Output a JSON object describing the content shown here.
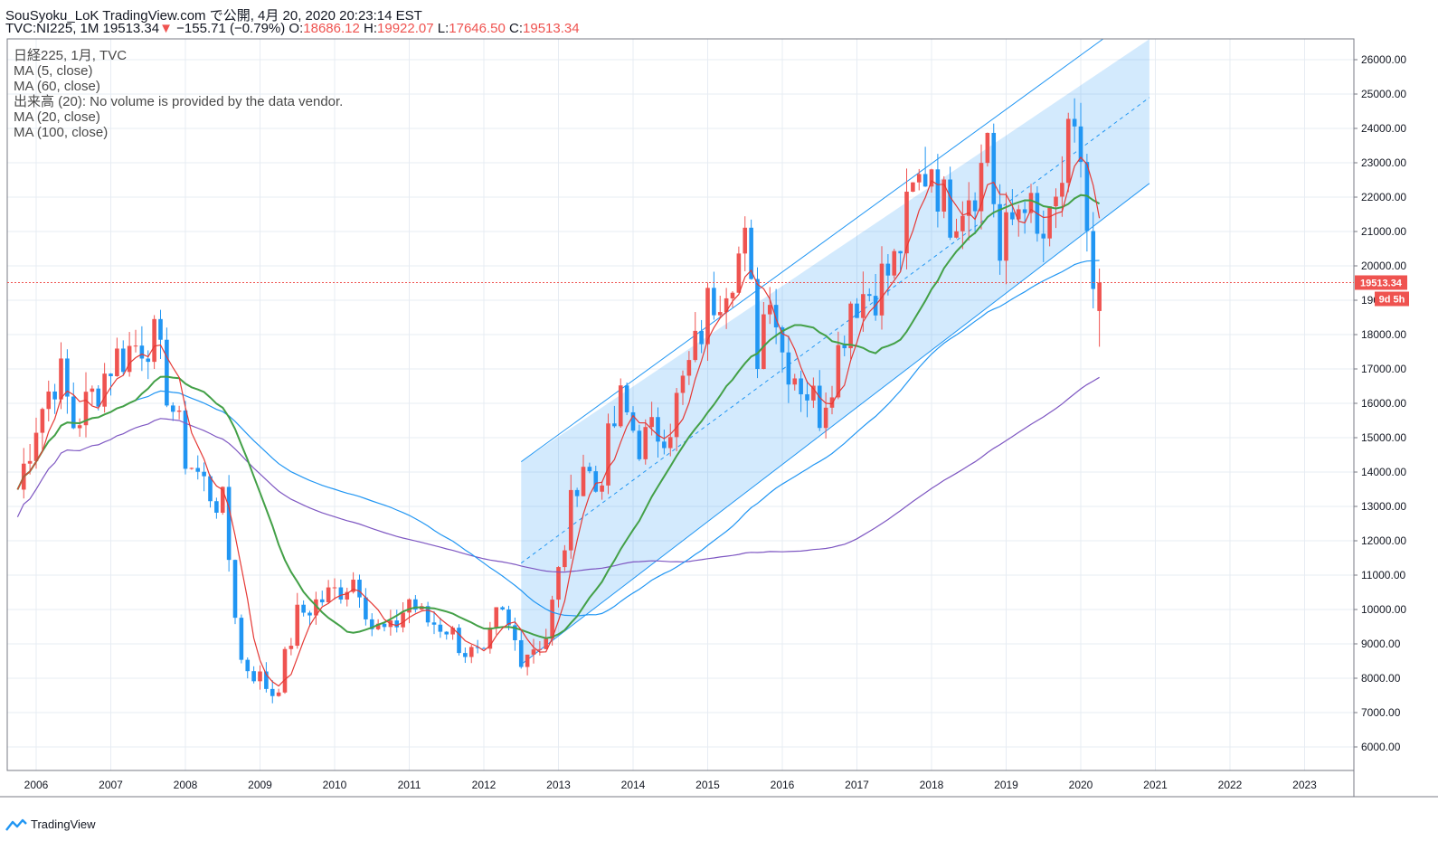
{
  "header": {
    "line1": "SouSyoku_LoK TradingView.com で公開, 4月 20, 2020 20:23:14 EST",
    "symbol": "TVC:NI225, 1M",
    "last": "19513.34",
    "arrow": "▼",
    "change": "−155.71 (−0.79%)",
    "o_label": "O:",
    "o_value": "18686.12",
    "h_label": "H:",
    "h_value": "19922.07",
    "l_label": "L:",
    "l_value": "17646.50",
    "c_label": "C:",
    "c_value": "19513.34"
  },
  "legend": {
    "title": "日経225, 1月, TVC",
    "ma5": "MA (5, close)",
    "ma60": "MA (60, close)",
    "volume": "出来高 (20): No volume is provided by the data vendor.",
    "ma20": "MA (20, close)",
    "ma100": "MA (100, close)"
  },
  "price_tag": "19513.34",
  "countdown_tag": "9d 5h",
  "brand": "TradingView",
  "colors": {
    "up": "#ef5350",
    "down": "#2196f3",
    "ma5": "#e53935",
    "ma20": "#43a047",
    "ma60": "#2196f3",
    "ma100": "#7e57c2",
    "channel": "#2196f3",
    "grid": "#e7ecf3"
  },
  "chart_data": {
    "type": "candlestick",
    "title": "日経225, 1月, TVC",
    "y_ticks": [
      6000,
      7000,
      8000,
      9000,
      10000,
      11000,
      12000,
      13000,
      14000,
      15000,
      16000,
      17000,
      18000,
      19000,
      20000,
      21000,
      22000,
      23000,
      24000,
      25000,
      26000
    ],
    "y_tick_labels": [
      "6000.00",
      "7000.00",
      "8000.00",
      "9000.00",
      "10000.00",
      "11000.00",
      "12000.00",
      "13000.00",
      "14000.00",
      "15000.00",
      "16000.00",
      "17000.00",
      "18000.00",
      "19000.00",
      "20000.00",
      "21000.00",
      "22000.00",
      "23000.00",
      "24000.00",
      "25000.00",
      "26000.00"
    ],
    "x_ticks": [
      "2006",
      "2007",
      "2008",
      "2009",
      "2010",
      "2011",
      "2012",
      "2013",
      "2014",
      "2015",
      "2016",
      "2017",
      "2018",
      "2019",
      "2020",
      "2021",
      "2022",
      "2023"
    ],
    "last_price": 19513.34,
    "ohlc_anchor_closes": [
      [
        2005.75,
        13500
      ],
      [
        2006.0,
        15500
      ],
      [
        2006.3,
        17000
      ],
      [
        2006.5,
        15400
      ],
      [
        2006.75,
        16200
      ],
      [
        2007.0,
        17200
      ],
      [
        2007.4,
        17800
      ],
      [
        2007.55,
        18000
      ],
      [
        2007.75,
        16500
      ],
      [
        2008.0,
        14500
      ],
      [
        2008.3,
        13500
      ],
      [
        2008.5,
        13000
      ],
      [
        2008.75,
        8500
      ],
      [
        2009.0,
        8000
      ],
      [
        2009.2,
        7500
      ],
      [
        2009.5,
        9800
      ],
      [
        2009.75,
        10200
      ],
      [
        2010.0,
        10500
      ],
      [
        2010.3,
        11000
      ],
      [
        2010.5,
        9500
      ],
      [
        2010.75,
        9300
      ],
      [
        2011.0,
        10300
      ],
      [
        2011.2,
        9700
      ],
      [
        2011.5,
        9500
      ],
      [
        2011.75,
        8800
      ],
      [
        2012.0,
        8500
      ],
      [
        2012.2,
        10000
      ],
      [
        2012.5,
        8700
      ],
      [
        2012.83,
        9200
      ],
      [
        2013.0,
        11000
      ],
      [
        2013.3,
        14500
      ],
      [
        2013.5,
        13500
      ],
      [
        2013.83,
        16000
      ],
      [
        2014.1,
        14800
      ],
      [
        2014.5,
        15500
      ],
      [
        2014.83,
        17500
      ],
      [
        2015.0,
        18800
      ],
      [
        2015.3,
        20000
      ],
      [
        2015.5,
        20500
      ],
      [
        2015.67,
        17500
      ],
      [
        2015.83,
        19700
      ],
      [
        2016.0,
        17500
      ],
      [
        2016.3,
        16500
      ],
      [
        2016.5,
        15800
      ],
      [
        2016.75,
        17500
      ],
      [
        2016.92,
        19100
      ],
      [
        2017.2,
        19300
      ],
      [
        2017.5,
        20000
      ],
      [
        2017.75,
        22000
      ],
      [
        2017.92,
        22800
      ],
      [
        2018.0,
        23100
      ],
      [
        2018.2,
        21500
      ],
      [
        2018.5,
        22300
      ],
      [
        2018.67,
        22800
      ],
      [
        2018.75,
        24000
      ],
      [
        2018.92,
        20000
      ],
      [
        2019.0,
        20800
      ],
      [
        2019.25,
        22300
      ],
      [
        2019.4,
        20600
      ],
      [
        2019.6,
        21000
      ],
      [
        2019.83,
        23300
      ],
      [
        2020.0,
        23200
      ],
      [
        2020.08,
        21100
      ],
      [
        2020.17,
        18900
      ],
      [
        2020.25,
        19513
      ]
    ],
    "channel": {
      "start": [
        2012.5,
        8400
      ],
      "upper_start": [
        2012.5,
        14300
      ],
      "end_date": 2020.92,
      "upper_end": 26600,
      "lower_end": 22400
    },
    "series": [
      {
        "name": "MA (5, close)",
        "color": "#e53935"
      },
      {
        "name": "MA (20, close)",
        "color": "#43a047"
      },
      {
        "name": "MA (60, close)",
        "color": "#2196f3"
      },
      {
        "name": "MA (100, close)",
        "color": "#7e57c2"
      }
    ]
  }
}
